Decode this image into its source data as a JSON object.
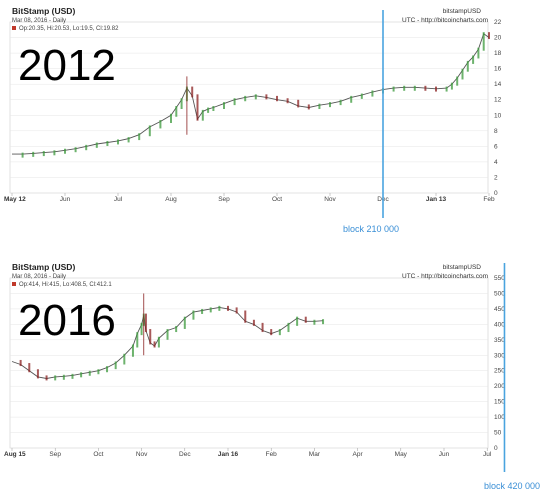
{
  "colors": {
    "line": "#555555",
    "up": "#3c9a3c",
    "down": "#8b2222",
    "marker_line": "#4aa3df",
    "block_text": "#3a8fd6",
    "grid": "#e6e6e6"
  },
  "chart_data": [
    {
      "type": "line",
      "title": "BitStamp (USD)",
      "subtitle": "Mar 08, 2016 - Daily",
      "ohlc": "Op:20.35, Hi:20.53, Lo:19.5, Cl:19.82",
      "source_name": "bitstampUSD",
      "source_note": "UTC - http://bitcoincharts.com",
      "year_label": "2012",
      "xlabels": [
        "May 12",
        "Jun",
        "Jul",
        "Aug",
        "Sep",
        "Oct",
        "Nov",
        "Dec",
        "Jan 13",
        "Feb"
      ],
      "bold_xlabels": [
        "May 12",
        "Jan 13"
      ],
      "ylim": [
        0,
        22
      ],
      "yticks": [
        0,
        2,
        4,
        6,
        8,
        10,
        12,
        14,
        16,
        18,
        20,
        22
      ],
      "grid": true,
      "annotation": "block 210 000",
      "annotation_month_index": 7.0,
      "x": [
        0,
        0.2,
        0.4,
        0.6,
        0.8,
        1.0,
        1.2,
        1.4,
        1.6,
        1.8,
        2.0,
        2.2,
        2.4,
        2.6,
        2.8,
        3.0,
        3.1,
        3.2,
        3.3,
        3.4,
        3.5,
        3.6,
        3.7,
        3.8,
        4.0,
        4.2,
        4.4,
        4.6,
        4.8,
        5.0,
        5.2,
        5.4,
        5.6,
        5.8,
        6.0,
        6.2,
        6.4,
        6.6,
        6.8,
        7.0,
        7.2,
        7.4,
        7.6,
        7.8,
        8.0,
        8.2,
        8.3,
        8.4,
        8.5,
        8.6,
        8.7,
        8.8,
        8.9,
        9.0
      ],
      "values": [
        5.0,
        5.0,
        5.1,
        5.2,
        5.3,
        5.5,
        5.7,
        6.0,
        6.3,
        6.5,
        6.7,
        7.0,
        7.5,
        8.5,
        9.2,
        10.0,
        11.0,
        12.0,
        13.5,
        12.5,
        9.5,
        10.5,
        10.8,
        11.0,
        11.5,
        12.0,
        12.3,
        12.5,
        12.3,
        12.0,
        11.8,
        11.2,
        11.0,
        11.3,
        11.5,
        11.8,
        12.3,
        12.6,
        13.0,
        13.3,
        13.5,
        13.6,
        13.6,
        13.5,
        13.4,
        13.5,
        14.0,
        14.8,
        15.8,
        16.8,
        17.5,
        18.5,
        20.5,
        20.0
      ],
      "spikes": [
        [
          3.3,
          15.0,
          7.5
        ]
      ]
    },
    {
      "type": "line",
      "title": "BitStamp (USD)",
      "subtitle": "Mar 08, 2016 - Daily",
      "ohlc": "Op:414, Hi:415, Lo:408.5, Cl:412.1",
      "source_name": "bitstampUSD",
      "source_note": "UTC - http://bitcoincharts.com",
      "year_label": "2016",
      "xlabels": [
        "Aug 15",
        "Sep",
        "Oct",
        "Nov",
        "Dec",
        "Jan 16",
        "Feb",
        "Mar",
        "Apr",
        "May",
        "Jun",
        "Jul"
      ],
      "bold_xlabels": [
        "Aug 15",
        "Jan 16"
      ],
      "ylim": [
        0,
        550
      ],
      "yticks": [
        0,
        50,
        100,
        150,
        200,
        250,
        300,
        350,
        400,
        450,
        500,
        550
      ],
      "grid": true,
      "annotation": "block 420 000",
      "annotation_month_index": 11.4,
      "x": [
        0,
        0.2,
        0.4,
        0.6,
        0.8,
        1.0,
        1.2,
        1.4,
        1.6,
        1.8,
        2.0,
        2.2,
        2.4,
        2.6,
        2.8,
        2.9,
        3.0,
        3.05,
        3.1,
        3.2,
        3.3,
        3.4,
        3.6,
        3.8,
        4.0,
        4.2,
        4.4,
        4.6,
        4.8,
        5.0,
        5.2,
        5.4,
        5.6,
        5.8,
        6.0,
        6.2,
        6.4,
        6.6,
        6.8,
        7.0,
        7.2
      ],
      "values": [
        280,
        270,
        250,
        230,
        225,
        230,
        232,
        235,
        240,
        245,
        250,
        260,
        275,
        300,
        330,
        370,
        400,
        430,
        380,
        340,
        330,
        355,
        380,
        390,
        420,
        440,
        445,
        450,
        455,
        450,
        440,
        410,
        400,
        380,
        370,
        380,
        400,
        420,
        410,
        410,
        412
      ],
      "spikes": [
        [
          3.05,
          500,
          300
        ]
      ]
    }
  ],
  "annotations": {
    "top": "block 210 000",
    "bottom": "block 420 000"
  }
}
